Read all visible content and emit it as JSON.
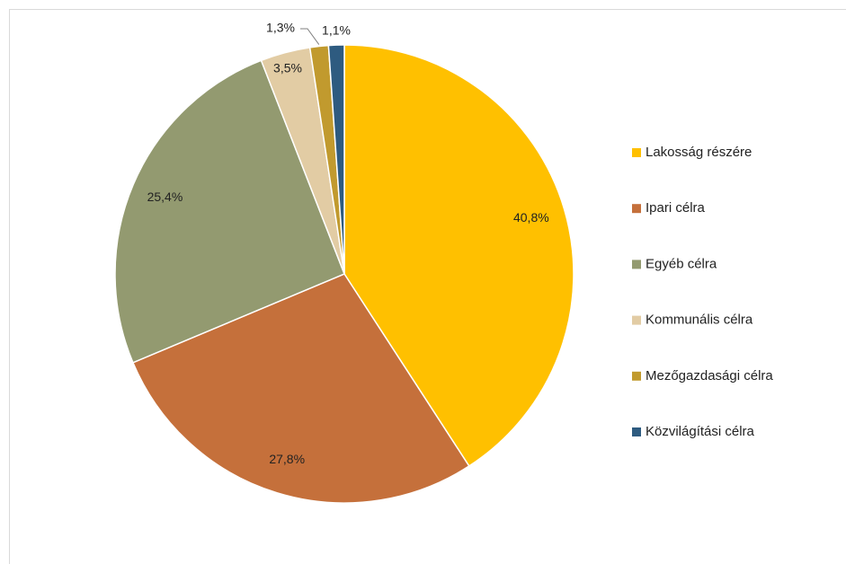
{
  "chart_data": {
    "type": "pie",
    "categories": [
      "Lakosság részére",
      "Ipari célra",
      "Egyéb célra",
      "Kommunális célra",
      "Mezőgazdasági célra",
      "Közvilágítási célra"
    ],
    "values": [
      40.8,
      27.8,
      25.4,
      3.5,
      1.3,
      1.1
    ],
    "value_labels": [
      "40,8%",
      "27,8%",
      "25,4%",
      "3,5%",
      "1,3%",
      "1,1%"
    ],
    "colors": [
      "#ffc000",
      "#c5703b",
      "#939a70",
      "#e2cca4",
      "#c19a2e",
      "#2e5b80"
    ],
    "legend": "right"
  }
}
